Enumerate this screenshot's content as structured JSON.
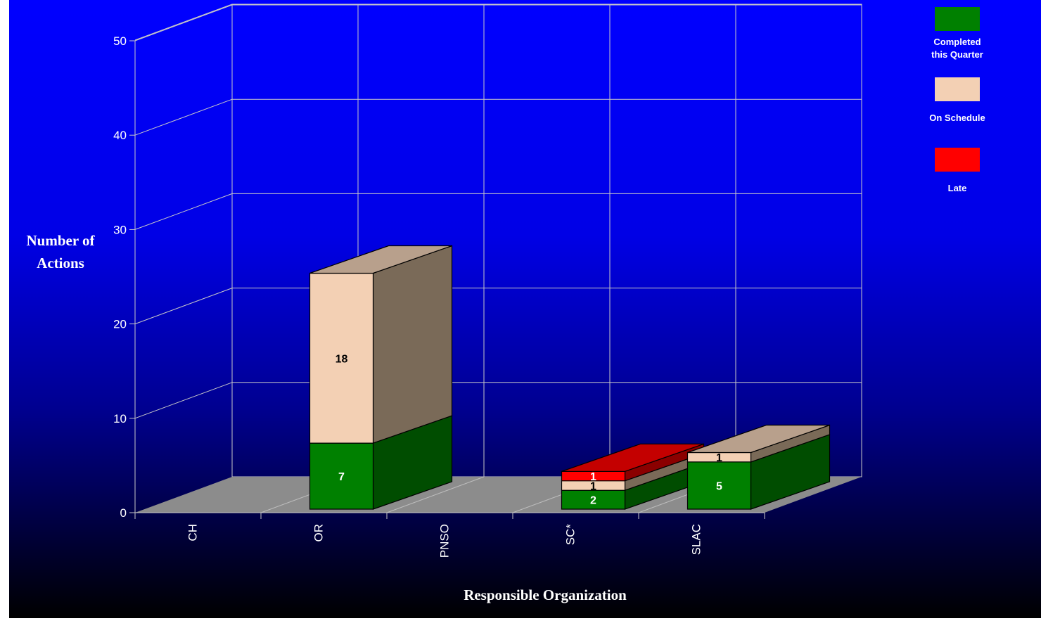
{
  "chart_data": {
    "type": "bar",
    "stacked": true,
    "three_d": true,
    "categories": [
      "CH",
      "OR",
      "PNSO",
      "SC*",
      "SLAC"
    ],
    "series": [
      {
        "name": "Completed this Quarter",
        "color": "#008000",
        "side": "#004d00",
        "top": "#2e7d2e",
        "values": [
          0,
          7,
          0,
          2,
          5
        ],
        "labels": [
          "",
          "7",
          "",
          "2",
          "5"
        ],
        "label_color": "#ffffff"
      },
      {
        "name": "On Schedule",
        "color": "#f3d0b4",
        "side": "#7a6a58",
        "top": "#b8a08c",
        "values": [
          0,
          18,
          0,
          1,
          1
        ],
        "labels": [
          "",
          "18",
          "",
          "1",
          "1"
        ],
        "label_color": "#000000"
      },
      {
        "name": "Late",
        "color": "#ff0000",
        "side": "#8b0000",
        "top": "#c40000",
        "values": [
          0,
          0,
          0,
          1,
          0
        ],
        "labels": [
          "",
          "",
          "",
          "1",
          ""
        ],
        "label_color": "#ffffff"
      }
    ],
    "ylim": [
      0,
      50
    ],
    "yticks": [
      0,
      10,
      20,
      30,
      40,
      50
    ],
    "ylabel_lines": [
      "Number of",
      "Actions"
    ],
    "xlabel": "Responsible Organization",
    "grid": true,
    "legend": {
      "position": "top-right",
      "items": [
        {
          "lines": [
            "Completed",
            "this Quarter"
          ],
          "color": "#008000"
        },
        {
          "lines": [
            "On Schedule"
          ],
          "color": "#f3d0b4"
        },
        {
          "lines": [
            "Late"
          ],
          "color": "#ff0000"
        }
      ]
    },
    "colors": {
      "floor": "#8c8c8c",
      "grid": "#c8c8c8"
    }
  }
}
